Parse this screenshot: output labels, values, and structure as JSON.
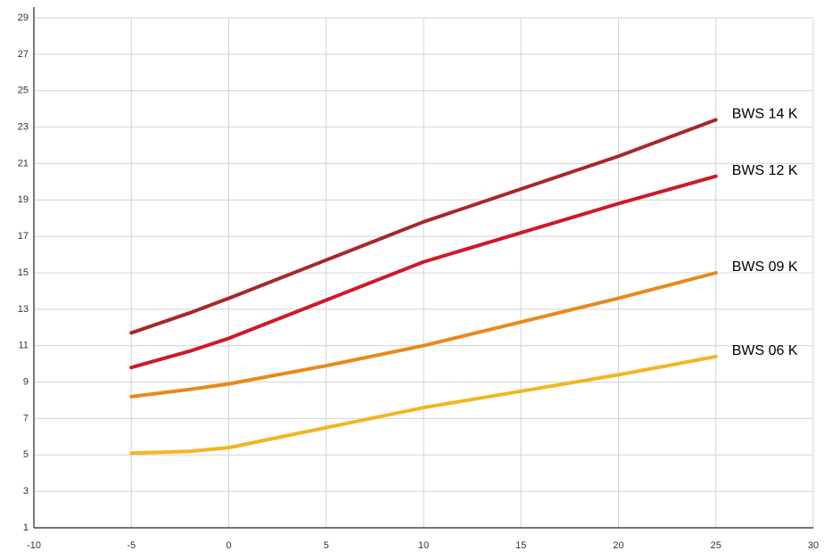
{
  "chart_data": {
    "type": "line",
    "x": [
      -5,
      -2,
      0,
      5,
      10,
      15,
      20,
      25
    ],
    "series": [
      {
        "name": "BWS 14 K",
        "color": "#a8272b",
        "values": [
          11.7,
          12.8,
          13.6,
          15.7,
          17.8,
          19.6,
          21.4,
          23.4
        ]
      },
      {
        "name": "BWS 12 K",
        "color": "#d0182a",
        "values": [
          9.8,
          10.7,
          11.4,
          13.5,
          15.6,
          17.2,
          18.8,
          20.3
        ]
      },
      {
        "name": "BWS 09 K",
        "color": "#e8891c",
        "values": [
          8.2,
          8.6,
          8.9,
          9.9,
          11.0,
          12.3,
          13.6,
          15.0
        ]
      },
      {
        "name": "BWS 06 K",
        "color": "#f2b522",
        "values": [
          5.1,
          5.2,
          5.4,
          6.5,
          7.6,
          8.5,
          9.4,
          10.4
        ]
      }
    ],
    "xlim": [
      -10,
      30
    ],
    "xticks": [
      -10,
      -5,
      0,
      5,
      10,
      15,
      20,
      25,
      30
    ],
    "ylim": [
      1,
      29
    ],
    "yticks": [
      1,
      3,
      5,
      7,
      9,
      11,
      13,
      15,
      17,
      19,
      21,
      23,
      25,
      27,
      29
    ],
    "grid": true
  }
}
